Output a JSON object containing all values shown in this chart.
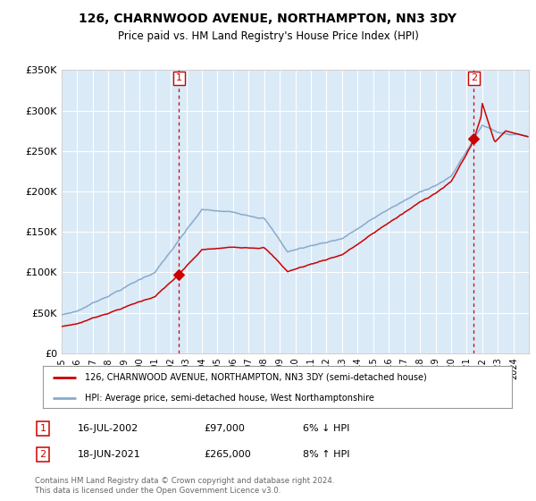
{
  "title": "126, CHARNWOOD AVENUE, NORTHAMPTON, NN3 3DY",
  "subtitle": "Price paid vs. HM Land Registry's House Price Index (HPI)",
  "ylim": [
    0,
    350000
  ],
  "yticks": [
    0,
    50000,
    100000,
    150000,
    200000,
    250000,
    300000,
    350000
  ],
  "ytick_labels": [
    "£0",
    "£50K",
    "£100K",
    "£150K",
    "£200K",
    "£250K",
    "£300K",
    "£350K"
  ],
  "background_color": "#daeaf7",
  "grid_color": "#ffffff",
  "red_color": "#cc0000",
  "blue_color": "#88aacc",
  "transaction1_year": 2002.54,
  "transaction1_price": 97000,
  "transaction2_year": 2021.46,
  "transaction2_price": 265000,
  "legend_line1": "126, CHARNWOOD AVENUE, NORTHAMPTON, NN3 3DY (semi-detached house)",
  "legend_line2": "HPI: Average price, semi-detached house, West Northamptonshire",
  "annotation1_label": "1",
  "annotation1_date": "16-JUL-2002",
  "annotation1_price": "£97,000",
  "annotation1_hpi": "6% ↓ HPI",
  "annotation2_label": "2",
  "annotation2_date": "18-JUN-2021",
  "annotation2_price": "£265,000",
  "annotation2_hpi": "8% ↑ HPI",
  "footer": "Contains HM Land Registry data © Crown copyright and database right 2024.\nThis data is licensed under the Open Government Licence v3.0."
}
